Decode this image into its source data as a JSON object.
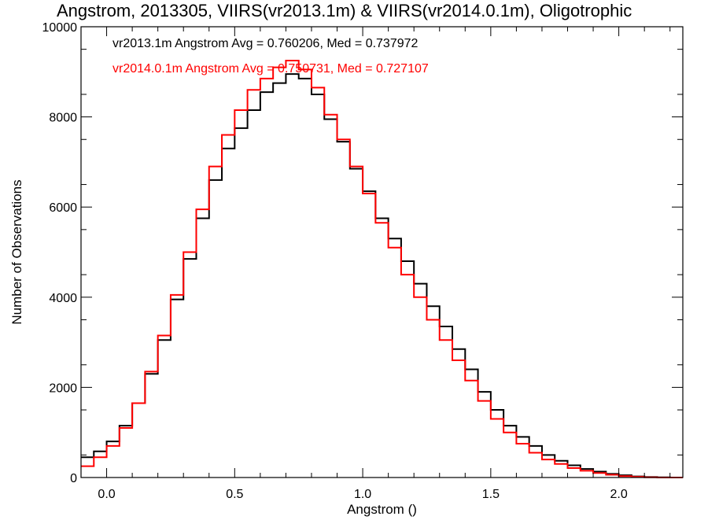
{
  "chart_data": {
    "type": "line",
    "title": "Angstrom, 2013305, VIIRS(vr2013.1m) & VIIRS(vr2014.0.1m), Oligotrophic",
    "xlabel": "Angstrom ()",
    "ylabel": "Number of Observations",
    "xlim": [
      -0.1,
      2.25
    ],
    "ylim": [
      0,
      10000
    ],
    "xticks": [
      "0.0",
      "0.5",
      "1.0",
      "1.5",
      "2.0"
    ],
    "yticks": [
      "0",
      "2000",
      "4000",
      "6000",
      "8000",
      "10000"
    ],
    "grid": false,
    "annotations": [
      {
        "text": "vr2013.1m Angstrom Avg = 0.760206, Med = 0.737972",
        "color": "#000000"
      },
      {
        "text": "vr2014.0.1m Angstrom Avg = 0.750731, Med = 0.727107",
        "color": "#ff0000"
      }
    ],
    "series": [
      {
        "color": "#000000",
        "x": [
          -0.1,
          -0.05,
          0.0,
          0.05,
          0.1,
          0.15,
          0.2,
          0.25,
          0.3,
          0.35,
          0.4,
          0.45,
          0.5,
          0.55,
          0.6,
          0.65,
          0.7,
          0.75,
          0.8,
          0.85,
          0.9,
          0.95,
          1.0,
          1.05,
          1.1,
          1.15,
          1.2,
          1.25,
          1.3,
          1.35,
          1.4,
          1.45,
          1.5,
          1.55,
          1.6,
          1.65,
          1.7,
          1.75,
          1.8,
          1.85,
          1.9,
          1.95,
          2.0,
          2.05,
          2.1,
          2.15,
          2.2,
          2.25
        ],
        "y": [
          450,
          580,
          800,
          1150,
          1650,
          2300,
          3050,
          3950,
          4850,
          5750,
          6600,
          7300,
          7750,
          8150,
          8550,
          8750,
          8950,
          8850,
          8500,
          7950,
          7450,
          6850,
          6350,
          5750,
          5300,
          4800,
          4300,
          3800,
          3350,
          2850,
          2400,
          1900,
          1500,
          1150,
          900,
          700,
          500,
          370,
          270,
          190,
          130,
          80,
          50,
          25,
          10,
          5,
          0,
          0
        ]
      },
      {
        "color": "#ff0000",
        "x": [
          -0.1,
          -0.05,
          0.0,
          0.05,
          0.1,
          0.15,
          0.2,
          0.25,
          0.3,
          0.35,
          0.4,
          0.45,
          0.5,
          0.55,
          0.6,
          0.65,
          0.7,
          0.75,
          0.8,
          0.85,
          0.9,
          0.95,
          1.0,
          1.05,
          1.1,
          1.15,
          1.2,
          1.25,
          1.3,
          1.35,
          1.4,
          1.45,
          1.5,
          1.55,
          1.6,
          1.65,
          1.7,
          1.75,
          1.8,
          1.85,
          1.9,
          1.95,
          2.0,
          2.05,
          2.1,
          2.15,
          2.2,
          2.25
        ],
        "y": [
          250,
          450,
          700,
          1100,
          1650,
          2350,
          3150,
          4050,
          5000,
          5950,
          6900,
          7600,
          8150,
          8600,
          8850,
          9100,
          9250,
          9050,
          8650,
          8050,
          7500,
          6900,
          6300,
          5650,
          5100,
          4500,
          4000,
          3500,
          3050,
          2600,
          2150,
          1700,
          1300,
          1000,
          750,
          550,
          400,
          300,
          210,
          150,
          100,
          60,
          30,
          15,
          5,
          0,
          0,
          0
        ]
      }
    ]
  }
}
